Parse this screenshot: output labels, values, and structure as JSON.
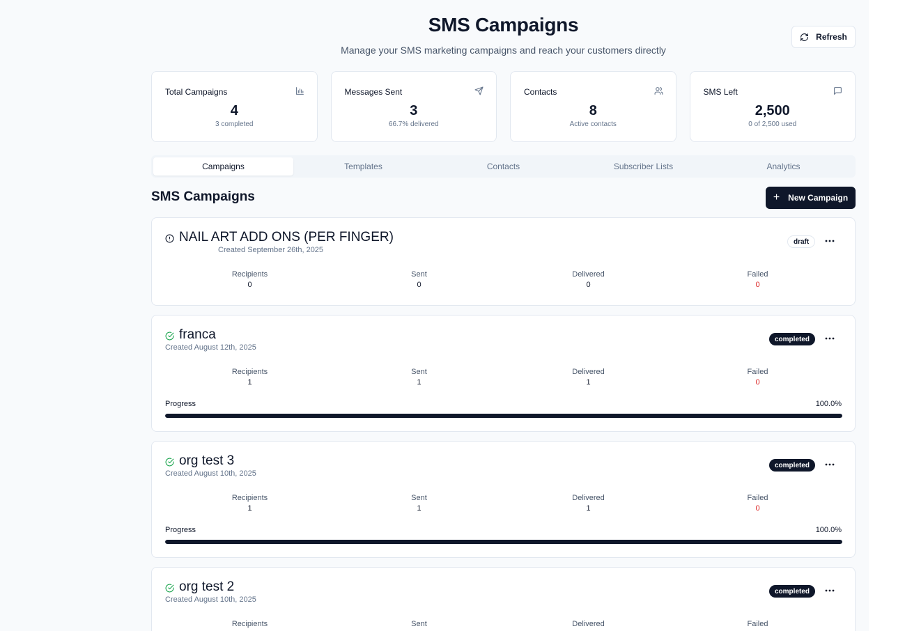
{
  "header": {
    "title": "SMS Campaigns",
    "subtitle": "Manage your SMS marketing campaigns and reach your customers directly",
    "refresh_label": "Refresh"
  },
  "stats": [
    {
      "label": "Total Campaigns",
      "value": "4",
      "sub": "3 completed",
      "icon": "bar-chart-icon"
    },
    {
      "label": "Messages Sent",
      "value": "3",
      "sub": "66.7% delivered",
      "icon": "send-icon"
    },
    {
      "label": "Contacts",
      "value": "8",
      "sub": "Active contacts",
      "icon": "users-icon"
    },
    {
      "label": "SMS Left",
      "value": "2,500",
      "sub": "0 of 2,500 used",
      "icon": "message-square-icon"
    }
  ],
  "tabs": [
    {
      "label": "Campaigns",
      "active": true
    },
    {
      "label": "Templates",
      "active": false
    },
    {
      "label": "Contacts",
      "active": false
    },
    {
      "label": "Subscriber Lists",
      "active": false
    },
    {
      "label": "Analytics",
      "active": false
    }
  ],
  "section": {
    "title": "SMS Campaigns",
    "new_button_label": "New Campaign"
  },
  "metric_labels": {
    "recipients": "Recipients",
    "sent": "Sent",
    "delivered": "Delivered",
    "failed": "Failed",
    "progress": "Progress"
  },
  "campaigns": [
    {
      "name": "NAIL ART ADD ONS (PER FINGER)",
      "created": "Created September 26th, 2025",
      "status": "draft",
      "status_icon": "alert-circle-icon",
      "recipients": "0",
      "sent": "0",
      "delivered": "0",
      "failed": "0"
    },
    {
      "name": "franca",
      "created": "Created August 12th, 2025",
      "status": "completed",
      "status_icon": "check-circle-icon",
      "recipients": "1",
      "sent": "1",
      "delivered": "1",
      "failed": "0",
      "progress": "100.0%",
      "progress_fraction": 1.0
    },
    {
      "name": "org test 3",
      "created": "Created August 10th, 2025",
      "status": "completed",
      "status_icon": "check-circle-icon",
      "recipients": "1",
      "sent": "1",
      "delivered": "1",
      "failed": "0",
      "progress": "100.0%",
      "progress_fraction": 1.0
    },
    {
      "name": "org test 2",
      "created": "Created August 10th, 2025",
      "status": "completed",
      "status_icon": "check-circle-icon",
      "recipients": "",
      "sent": "",
      "delivered": "",
      "failed": ""
    }
  ],
  "colors": {
    "primary": "#0f172a",
    "success": "#16a34a",
    "failed": "#dc2626",
    "muted": "#64748b"
  }
}
